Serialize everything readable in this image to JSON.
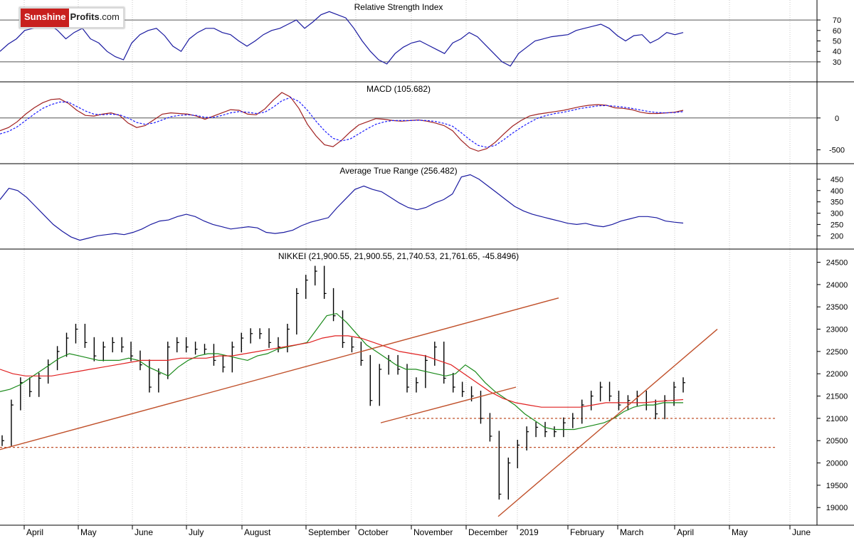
{
  "brand": {
    "name_part1": "Sunshine",
    "name_part2": "Profits",
    "suffix": ".com"
  },
  "colors": {
    "price_bars": "#000000",
    "sma_fast": "#1a8a1a",
    "sma_slow": "#e02020",
    "trendlines": "#c0502a",
    "indicator_line": "#1a1aa0",
    "macd_line": "#a02020",
    "background": "#ffffff",
    "grid": "#c8c8c8"
  },
  "x_axis": {
    "labels": [
      "April",
      "May",
      "June",
      "July",
      "August",
      "September",
      "October",
      "November",
      "December",
      "2019",
      "February",
      "March",
      "April",
      "May",
      "June"
    ]
  },
  "chart_data": [
    {
      "type": "line",
      "title": "Relative Strength Index",
      "yticks": [
        30,
        40,
        50,
        60,
        70
      ],
      "ylim": [
        15,
        85
      ],
      "reference_lines": [
        30,
        70
      ],
      "series": [
        {
          "values": [
            40,
            47,
            52,
            60,
            62,
            64,
            66,
            60,
            52,
            58,
            62,
            52,
            48,
            40,
            35,
            32,
            48,
            56,
            60,
            62,
            55,
            45,
            40,
            52,
            58,
            62,
            62,
            58,
            56,
            50,
            45,
            50,
            56,
            60,
            62,
            66,
            70,
            62,
            68,
            75,
            78,
            75,
            72,
            62,
            50,
            40,
            32,
            28,
            38,
            44,
            48,
            50,
            46,
            42,
            38,
            48,
            52,
            58,
            54,
            46,
            38,
            30,
            26,
            38,
            44,
            50,
            52,
            54,
            55,
            56,
            60,
            62,
            64,
            66,
            62,
            55,
            50,
            55,
            56,
            48,
            52,
            58,
            56,
            58
          ]
        }
      ]
    },
    {
      "type": "line",
      "title": "MACD (105.682)",
      "yticks": [
        -500,
        0
      ],
      "ylim": [
        -650,
        500
      ],
      "series": [
        {
          "values": [
            -200,
            -150,
            -60,
            60,
            160,
            240,
            290,
            300,
            230,
            120,
            40,
            30,
            60,
            80,
            40,
            -80,
            -150,
            -120,
            -30,
            60,
            80,
            70,
            60,
            30,
            -20,
            30,
            80,
            130,
            120,
            60,
            50,
            140,
            280,
            400,
            330,
            150,
            -100,
            -280,
            -420,
            -450,
            -350,
            -220,
            -110,
            -60,
            -10,
            -20,
            -40,
            -50,
            -40,
            -30,
            -50,
            -80,
            -120,
            -200,
            -350,
            -470,
            -520,
            -480,
            -380,
            -250,
            -130,
            -40,
            30,
            60,
            80,
            100,
            120,
            150,
            180,
            200,
            210,
            200,
            160,
            150,
            130,
            90,
            70,
            70,
            80,
            90,
            120
          ]
        },
        {
          "values": [
            -250,
            -210,
            -140,
            -40,
            60,
            150,
            210,
            250,
            250,
            180,
            110,
            60,
            50,
            60,
            50,
            0,
            -70,
            -100,
            -80,
            -30,
            20,
            40,
            50,
            40,
            10,
            10,
            40,
            80,
            100,
            90,
            70,
            90,
            170,
            270,
            320,
            260,
            120,
            -50,
            -200,
            -320,
            -360,
            -330,
            -250,
            -170,
            -100,
            -60,
            -40,
            -40,
            -40,
            -35,
            -40,
            -55,
            -85,
            -130,
            -230,
            -340,
            -430,
            -460,
            -430,
            -340,
            -240,
            -150,
            -70,
            0,
            40,
            70,
            90,
            120,
            150,
            170,
            190,
            195,
            185,
            170,
            150,
            125,
            100,
            85,
            80,
            85,
            100
          ]
        }
      ]
    },
    {
      "type": "line",
      "title": "Average True Range (256.482)",
      "yticks": [
        200,
        250,
        300,
        350,
        400,
        450
      ],
      "ylim": [
        160,
        500
      ],
      "series": [
        {
          "values": [
            360,
            410,
            400,
            370,
            330,
            290,
            250,
            220,
            195,
            180,
            190,
            200,
            205,
            210,
            205,
            215,
            230,
            250,
            265,
            270,
            285,
            295,
            285,
            265,
            250,
            240,
            230,
            235,
            240,
            235,
            215,
            210,
            215,
            225,
            245,
            260,
            270,
            280,
            325,
            365,
            405,
            420,
            405,
            395,
            370,
            345,
            325,
            315,
            325,
            345,
            360,
            385,
            460,
            470,
            450,
            420,
            390,
            360,
            330,
            310,
            295,
            285,
            275,
            265,
            255,
            250,
            255,
            245,
            240,
            250,
            265,
            275,
            285,
            285,
            280,
            265,
            260,
            256
          ]
        }
      ]
    },
    {
      "type": "line",
      "title": "NIKKEI (21,900.55, 21,900.55, 21,740.53, 21,761.65, -45.8496)",
      "yticks": [
        19000,
        19500,
        20000,
        20500,
        21000,
        21500,
        22000,
        22500,
        23000,
        23500,
        24000,
        24500
      ],
      "ylim": [
        18700,
        24700
      ],
      "series": [
        {
          "name": "close",
          "values": [
            20500,
            21300,
            21800,
            21600,
            21900,
            22200,
            22500,
            22800,
            23000,
            22700,
            22400,
            22600,
            22700,
            22600,
            22400,
            22200,
            21700,
            22000,
            22600,
            22700,
            22600,
            22550,
            22550,
            22300,
            22150,
            22600,
            22800,
            22900,
            22900,
            22700,
            22600,
            23000,
            23800,
            24100,
            24300,
            23800,
            23300,
            22700,
            22600,
            22300,
            21400,
            22100,
            22300,
            22100,
            21700,
            21800,
            22300,
            22600,
            21900,
            21700,
            21600,
            21500,
            21000,
            20600,
            19300,
            20000,
            20400,
            20700,
            20800,
            20700,
            20700,
            20900,
            21000,
            21300,
            21500,
            21700,
            21500,
            21300,
            21400,
            21500,
            21300,
            21100,
            21400,
            21700,
            21800
          ]
        },
        {
          "name": "fast average",
          "values": [
            21600,
            21650,
            21750,
            21900,
            22050,
            22200,
            22350,
            22450,
            22400,
            22350,
            22300,
            22300,
            22300,
            22350,
            22300,
            22150,
            22050,
            21950,
            22150,
            22300,
            22400,
            22450,
            22450,
            22400,
            22350,
            22300,
            22400,
            22450,
            22550,
            22600,
            22650,
            22700,
            23000,
            23300,
            23350,
            23150,
            22900,
            22650,
            22500,
            22350,
            22200,
            22100,
            22100,
            22050,
            22000,
            21950,
            22000,
            22200,
            22050,
            21800,
            21600,
            21450,
            21300,
            21100,
            20950,
            20800,
            20750,
            20750,
            20750,
            20800,
            20850,
            20900,
            21000,
            21150,
            21250,
            21300,
            21300,
            21350,
            21350,
            21350
          ]
        },
        {
          "name": "slow average",
          "values": [
            22100,
            22000,
            21950,
            21950,
            21950,
            22000,
            22050,
            22100,
            22150,
            22200,
            22250,
            22300,
            22300,
            22300,
            22350,
            22350,
            22350,
            22400,
            22400,
            22450,
            22500,
            22550,
            22600,
            22650,
            22700,
            22800,
            22850,
            22850,
            22800,
            22700,
            22600,
            22500,
            22450,
            22400,
            22300,
            22200,
            22000,
            21800,
            21600,
            21450,
            21350,
            21300,
            21250,
            21250,
            21250,
            21250,
            21300,
            21350,
            21350,
            21350,
            21350,
            21380,
            21400,
            21420
          ]
        }
      ],
      "trendlines": [
        {
          "from": [
            "April",
            20300
          ],
          "to": [
            "December",
            23700
          ]
        },
        {
          "from": [
            "November",
            20900
          ],
          "to": [
            "December",
            21700
          ]
        },
        {
          "from": [
            "December",
            18800
          ],
          "to": [
            "May",
            23000
          ]
        }
      ],
      "horizontal_levels": [
        21000,
        20350
      ]
    }
  ]
}
